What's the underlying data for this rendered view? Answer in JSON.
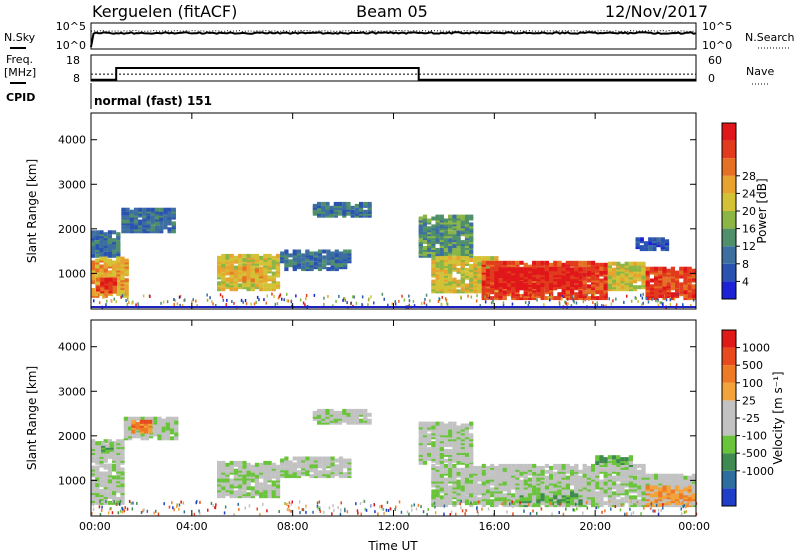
{
  "header": {
    "station": "Kerguelen (fitACF)",
    "beam": "Beam 05",
    "date": "12/Nov/2017"
  },
  "top_panels": {
    "nsky_label": "N.Sky",
    "nsky_ticks": [
      "10^5",
      "10^0"
    ],
    "nsearch_label": "N.Search",
    "nsearch_ticks": [
      "10^5",
      "10^0"
    ],
    "freq_label_1": "Freq.",
    "freq_label_2": "[MHz]",
    "freq_ticks": [
      "18",
      "8"
    ],
    "nave_label": "Nave",
    "nave_ticks": [
      "60",
      "0"
    ],
    "cpid_label": "CPID",
    "cpid_value": "normal (fast) 151",
    "freq_steps": [
      {
        "t": 0,
        "v": 8.5
      },
      {
        "t": 1,
        "v": 13
      },
      {
        "t": 13,
        "v": 8.5
      },
      {
        "t": 24,
        "v": 8.5
      }
    ],
    "nave_level": 16
  },
  "chart_data": [
    {
      "type": "heatmap",
      "name": "power-panel",
      "xlabel": "",
      "ylabel": "Slant Range [km]",
      "xlim": [
        0,
        24
      ],
      "ylim": [
        200,
        4600
      ],
      "yticks": [
        1000,
        2000,
        3000,
        4000
      ],
      "colorbar": {
        "label": "Power [dB]",
        "ticks": [
          "4",
          "8",
          "12",
          "16",
          "20",
          "24",
          "28"
        ],
        "colors": [
          "#1d22d6",
          "#2a52b0",
          "#3c6fa0",
          "#4f8f6a",
          "#8bb544",
          "#d3c235",
          "#e8a230",
          "#e57024",
          "#e23a1c",
          "#e0161a"
        ]
      },
      "regions": [
        {
          "t0": 0.0,
          "t1": 1.1,
          "r0": 1350,
          "r1": 1900,
          "level": 2
        },
        {
          "t0": 0.0,
          "t1": 1.4,
          "r0": 450,
          "r1": 1300,
          "level": 6
        },
        {
          "t0": 0.2,
          "t1": 0.9,
          "r0": 550,
          "r1": 850,
          "level": 8
        },
        {
          "t0": 1.2,
          "t1": 3.2,
          "r0": 1900,
          "r1": 2400,
          "level": 2
        },
        {
          "t0": 5.0,
          "t1": 7.5,
          "r0": 600,
          "r1": 1350,
          "level": 5
        },
        {
          "t0": 5.5,
          "t1": 6.8,
          "r0": 800,
          "r1": 1100,
          "level": 6
        },
        {
          "t0": 7.5,
          "t1": 10.2,
          "r0": 1050,
          "r1": 1450,
          "level": 2
        },
        {
          "t0": 8.8,
          "t1": 11.0,
          "r0": 2250,
          "r1": 2550,
          "level": 2
        },
        {
          "t0": 13.0,
          "t1": 15.0,
          "r0": 1350,
          "r1": 2250,
          "level": 3
        },
        {
          "t0": 13.5,
          "t1": 16.0,
          "r0": 550,
          "r1": 1300,
          "level": 5
        },
        {
          "t0": 15.5,
          "t1": 20.5,
          "r0": 400,
          "r1": 1200,
          "level": 8
        },
        {
          "t0": 16.0,
          "t1": 19.5,
          "r0": 650,
          "r1": 1050,
          "level": 9
        },
        {
          "t0": 20.5,
          "t1": 22.0,
          "r0": 600,
          "r1": 1200,
          "level": 5
        },
        {
          "t0": 22.0,
          "t1": 24.0,
          "r0": 400,
          "r1": 1100,
          "level": 8
        },
        {
          "t0": 21.6,
          "t1": 22.8,
          "r0": 1500,
          "r1": 1750,
          "level": 1
        }
      ]
    },
    {
      "type": "heatmap",
      "name": "velocity-panel",
      "xlabel": "Time UT",
      "ylabel": "Slant Range [km]",
      "xlim": [
        0,
        24
      ],
      "ylim": [
        200,
        4600
      ],
      "xticks": [
        "00:00",
        "04:00",
        "08:00",
        "12:00",
        "16:00",
        "20:00",
        "00:00"
      ],
      "yticks": [
        1000,
        2000,
        3000,
        4000
      ],
      "colorbar": {
        "label": "Velocity [m s⁻¹]",
        "ticks": [
          "1000",
          "500",
          "100",
          "25",
          "-25",
          "-100",
          "-500",
          "-1000"
        ],
        "colors": [
          "#1f3fc8",
          "#2d6ea0",
          "#3f8a50",
          "#69c43a",
          "#c2c2c2",
          "#c2c2c2",
          "#f2a33a",
          "#ee7a25",
          "#e84a1e",
          "#e01a18"
        ]
      },
      "regions": [
        {
          "t0": 0.0,
          "t1": 1.2,
          "r0": 1350,
          "r1": 1850,
          "level": 4
        },
        {
          "t0": 0.0,
          "t1": 1.3,
          "r0": 450,
          "r1": 1300,
          "level": 4
        },
        {
          "t0": 0.4,
          "t1": 0.8,
          "r0": 1600,
          "r1": 1800,
          "level": 3
        },
        {
          "t0": 1.3,
          "t1": 3.3,
          "r0": 1900,
          "r1": 2350,
          "level": 4
        },
        {
          "t0": 1.6,
          "t1": 2.4,
          "r0": 2050,
          "r1": 2300,
          "level": 7
        },
        {
          "t0": 5.0,
          "t1": 7.5,
          "r0": 600,
          "r1": 1350,
          "level": 4
        },
        {
          "t0": 7.5,
          "t1": 10.2,
          "r0": 1050,
          "r1": 1450,
          "level": 4
        },
        {
          "t0": 8.8,
          "t1": 11.0,
          "r0": 2250,
          "r1": 2550,
          "level": 4
        },
        {
          "t0": 13.0,
          "t1": 15.0,
          "r0": 1350,
          "r1": 2250,
          "level": 4
        },
        {
          "t0": 13.5,
          "t1": 22.0,
          "r0": 400,
          "r1": 1300,
          "level": 4
        },
        {
          "t0": 17.0,
          "t1": 19.5,
          "r0": 400,
          "r1": 700,
          "level": 3
        },
        {
          "t0": 20.0,
          "t1": 21.5,
          "r0": 1300,
          "r1": 1500,
          "level": 3
        },
        {
          "t0": 22.0,
          "t1": 24.0,
          "r0": 400,
          "r1": 1100,
          "level": 4
        },
        {
          "t0": 22.0,
          "t1": 24.0,
          "r0": 400,
          "r1": 800,
          "level": 6
        }
      ]
    }
  ]
}
